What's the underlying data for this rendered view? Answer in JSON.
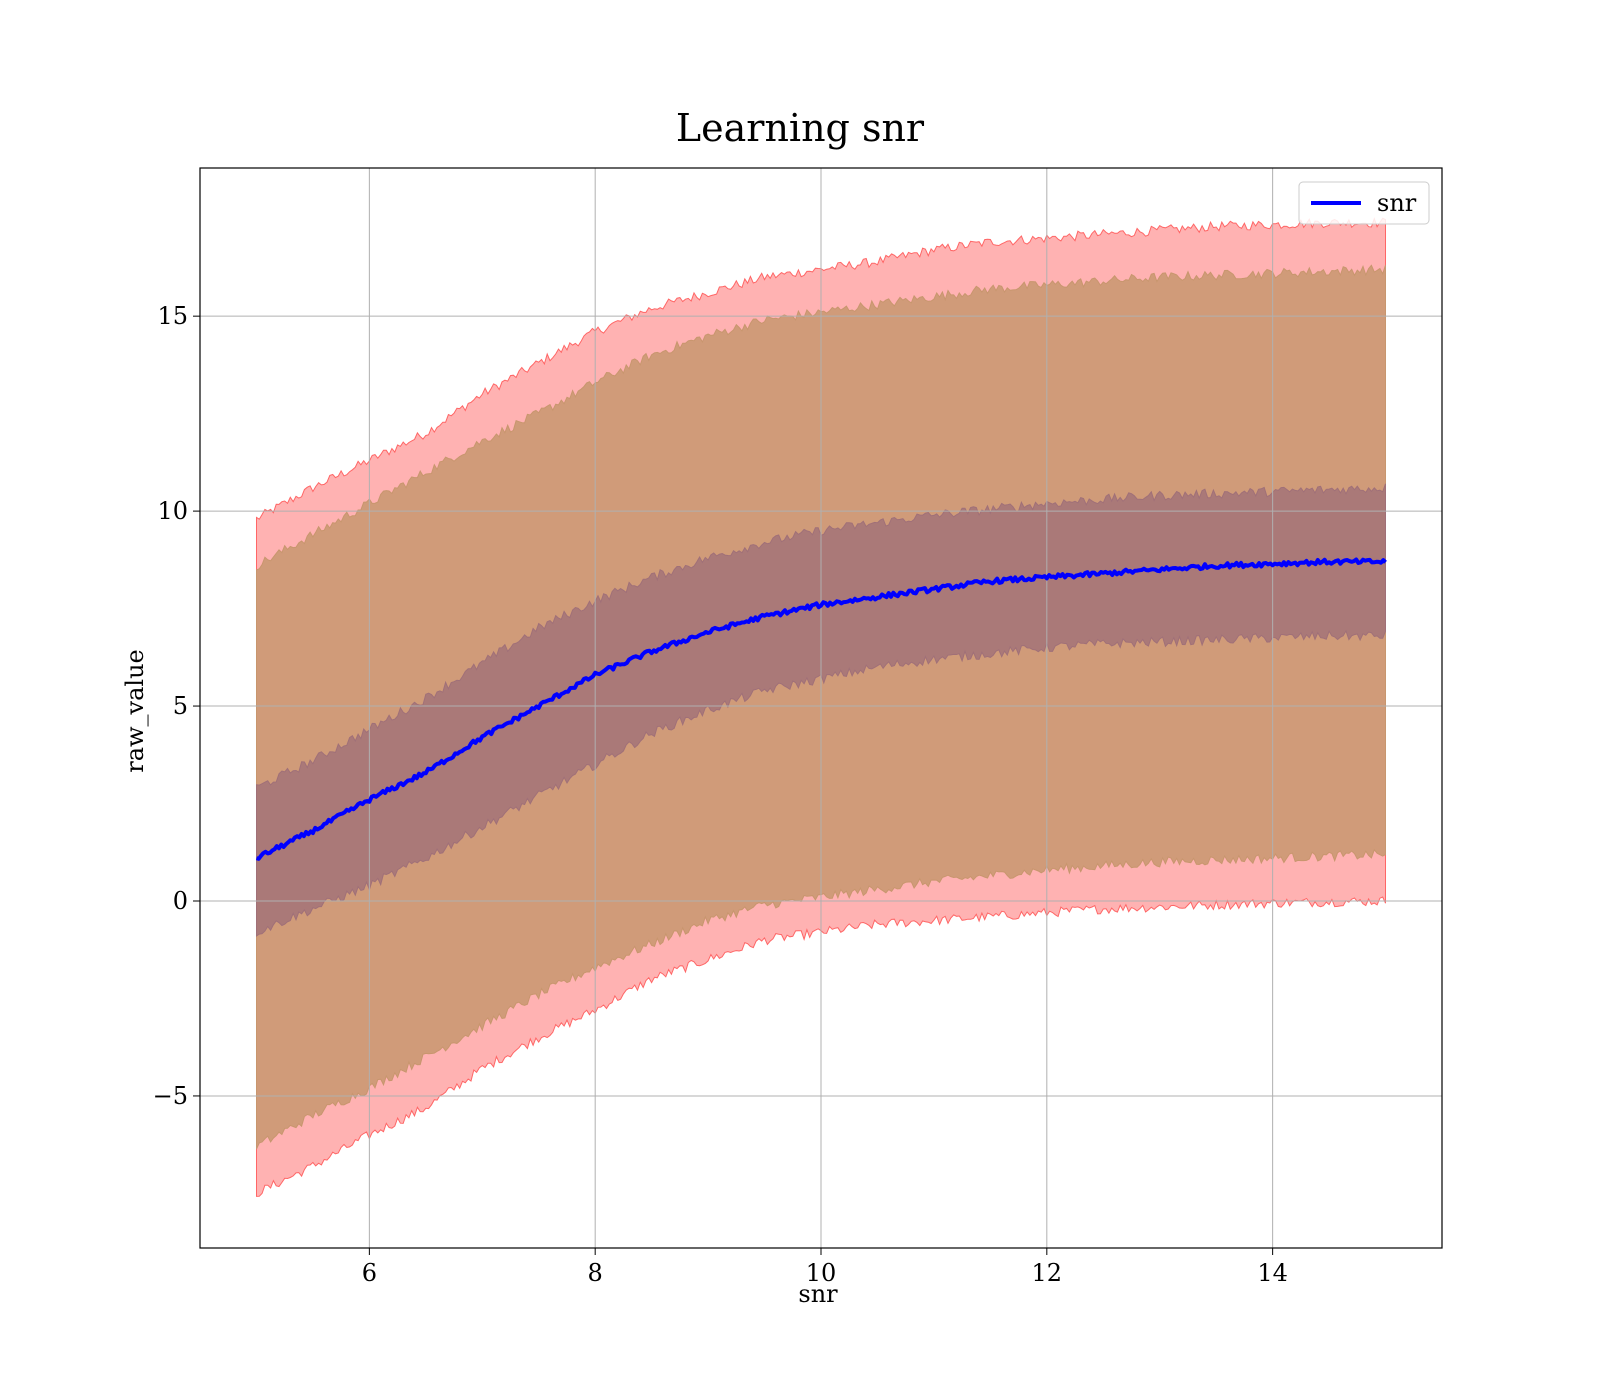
{
  "chart_data": {
    "type": "line",
    "title": "Learning snr",
    "xlabel": "snr",
    "ylabel": "raw_value",
    "xlim": [
      4.5,
      15.5
    ],
    "ylim": [
      -8.9,
      18.8
    ],
    "xticks": [
      6,
      8,
      10,
      12,
      14
    ],
    "yticks": [
      -5,
      0,
      5,
      10,
      15
    ],
    "xtick_labels": [
      "6",
      "8",
      "10",
      "12",
      "14"
    ],
    "ytick_labels": [
      "−5",
      "0",
      "5",
      "10",
      "15"
    ],
    "grid": true,
    "legend": {
      "position": "top-right",
      "entries": [
        "snr"
      ]
    },
    "x": [
      5,
      5.5,
      6,
      6.5,
      7,
      7.5,
      8,
      8.5,
      9,
      9.5,
      10,
      10.5,
      11,
      11.5,
      12,
      12.5,
      13,
      13.5,
      14,
      14.5,
      15
    ],
    "series": [
      {
        "name": "snr",
        "color": "#0000ff",
        "values": [
          1.1,
          1.8,
          2.6,
          3.3,
          4.2,
          5.0,
          5.8,
          6.4,
          6.9,
          7.3,
          7.6,
          7.8,
          8.0,
          8.2,
          8.3,
          8.4,
          8.5,
          8.6,
          8.65,
          8.7,
          8.7
        ]
      }
    ],
    "bands": [
      {
        "level": "outer",
        "color": "#ff6666",
        "lower": [
          -7.5,
          -6.8,
          -6.0,
          -5.3,
          -4.3,
          -3.5,
          -2.8,
          -2.0,
          -1.5,
          -1.0,
          -0.8,
          -0.6,
          -0.5,
          -0.4,
          -0.3,
          -0.2,
          -0.15,
          -0.1,
          -0.05,
          -0.02,
          0.0
        ],
        "upper": [
          9.8,
          10.6,
          11.3,
          12.0,
          13.0,
          13.8,
          14.6,
          15.2,
          15.6,
          16.0,
          16.2,
          16.4,
          16.7,
          16.9,
          17.0,
          17.1,
          17.2,
          17.3,
          17.35,
          17.4,
          17.4
        ]
      },
      {
        "level": "middle",
        "color": "#c8966e",
        "lower": [
          -6.3,
          -5.5,
          -4.8,
          -4.0,
          -3.2,
          -2.4,
          -1.7,
          -1.1,
          -0.5,
          -0.1,
          0.1,
          0.3,
          0.5,
          0.65,
          0.8,
          0.9,
          1.0,
          1.05,
          1.1,
          1.15,
          1.2
        ],
        "upper": [
          8.6,
          9.4,
          10.2,
          11.0,
          11.8,
          12.5,
          13.3,
          14.0,
          14.5,
          14.9,
          15.1,
          15.3,
          15.5,
          15.7,
          15.8,
          15.9,
          16.0,
          16.05,
          16.1,
          16.15,
          16.2
        ]
      },
      {
        "level": "inner",
        "color": "#a07078",
        "lower": [
          -0.8,
          -0.2,
          0.4,
          1.1,
          1.9,
          2.7,
          3.5,
          4.3,
          4.9,
          5.4,
          5.7,
          6.0,
          6.2,
          6.35,
          6.5,
          6.6,
          6.65,
          6.7,
          6.75,
          6.8,
          6.8
        ],
        "upper": [
          2.9,
          3.6,
          4.4,
          5.2,
          6.1,
          7.0,
          7.7,
          8.3,
          8.8,
          9.2,
          9.5,
          9.7,
          9.9,
          10.05,
          10.2,
          10.3,
          10.4,
          10.45,
          10.5,
          10.55,
          10.6
        ]
      }
    ]
  }
}
